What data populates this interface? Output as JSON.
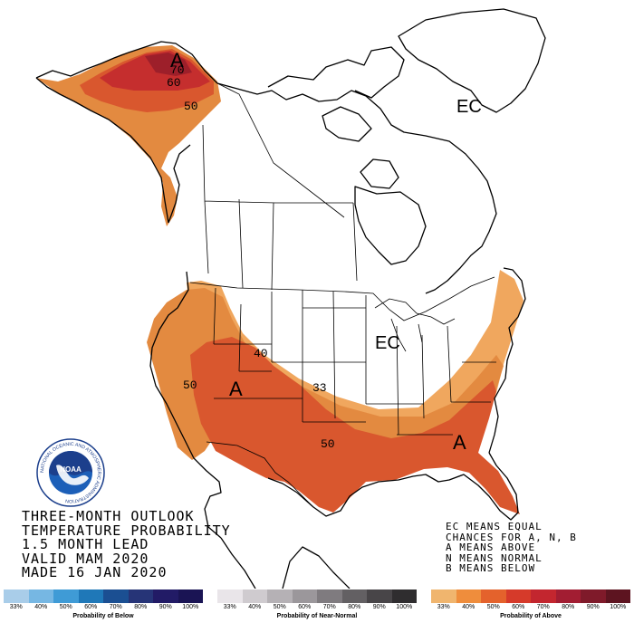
{
  "map": {
    "contour_labels": {
      "alaska_70": "70",
      "alaska_60": "60",
      "alaska_50": "50",
      "west_40": "40",
      "west_50": "50",
      "central_33": "33",
      "south_50": "50"
    },
    "category_letters": {
      "alaska": "A",
      "southwest": "A",
      "southeast": "A",
      "greenland": "EC",
      "great_lakes": "EC"
    },
    "colors": {
      "above_40": "#f0a75e",
      "above_50": "#e38a40",
      "above_60": "#d9572e",
      "above_70": "#c52e2e",
      "above_80": "#9d1f2a"
    }
  },
  "info": {
    "line1": "THREE-MONTH OUTLOOK",
    "line2": "TEMPERATURE PROBABILITY",
    "line3": "1.5 MONTH LEAD",
    "line4": "VALID MAM 2020",
    "line5": "MADE 16 JAN 2020"
  },
  "key": {
    "line1": "EC MEANS EQUAL",
    "line2": "CHANCES FOR A, N, B",
    "line3": "A MEANS ABOVE",
    "line4": "N MEANS NORMAL",
    "line5": "B MEANS BELOW"
  },
  "logo": {
    "center_text": "NOAA",
    "ring_text": "NATIONAL OCEANIC AND ATMOSPHERIC ADMINISTRATION"
  },
  "legend": {
    "below": {
      "title": "Probability of Below",
      "ticks": [
        "33%",
        "40%",
        "50%",
        "60%",
        "70%",
        "80%",
        "90%",
        "100%"
      ],
      "colors": [
        "#a9cde9",
        "#76b7e3",
        "#3f9bd6",
        "#1f78b8",
        "#1b4f92",
        "#263477",
        "#221b66",
        "#1a1454"
      ]
    },
    "normal": {
      "title": "Probability of Near-Normal",
      "ticks": [
        "33%",
        "40%",
        "50%",
        "60%",
        "70%",
        "80%",
        "90%",
        "100%"
      ],
      "colors": [
        "#e9e5e9",
        "#cfcbcf",
        "#b5b1b5",
        "#9b979b",
        "#7f7b7f",
        "#636063",
        "#484548",
        "#2f2d2f"
      ]
    },
    "above": {
      "title": "Probability of Above",
      "ticks": [
        "33%",
        "40%",
        "50%",
        "60%",
        "70%",
        "80%",
        "90%",
        "100%"
      ],
      "colors": [
        "#f0b56e",
        "#ef8d3c",
        "#e4622c",
        "#d63a2a",
        "#c3262f",
        "#a21d32",
        "#7f1a2a",
        "#5d1420"
      ]
    }
  }
}
